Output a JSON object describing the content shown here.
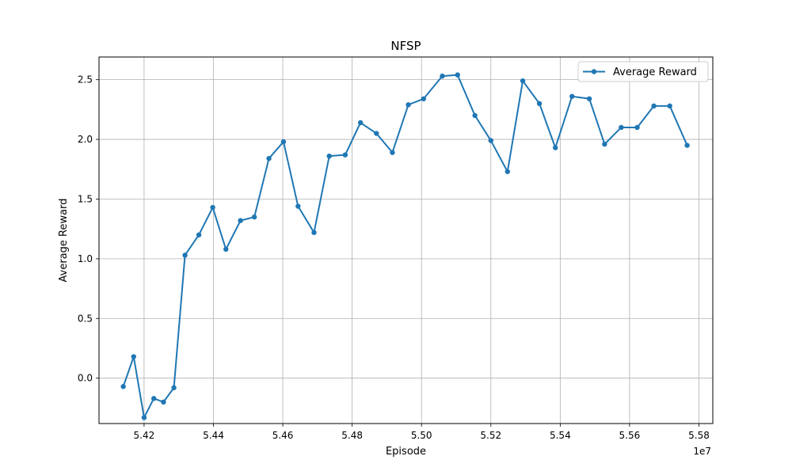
{
  "chart_data": {
    "type": "line",
    "title": "NFSP",
    "xlabel": "Episode",
    "ylabel": "Average Reward",
    "x_offset_label": "1e7",
    "xlim": [
      54.07,
      55.84
    ],
    "ylim": [
      -0.38,
      2.69
    ],
    "x_ticks": [
      54.2,
      54.4,
      54.6,
      54.8,
      55.0,
      55.2,
      55.4,
      55.6,
      55.8
    ],
    "x_tick_labels": [
      "5.42",
      "5.44",
      "5.46",
      "5.48",
      "5.50",
      "5.52",
      "5.54",
      "5.56",
      "5.58"
    ],
    "y_ticks": [
      0.0,
      0.5,
      1.0,
      1.5,
      2.0,
      2.5
    ],
    "y_tick_labels": [
      "0.0",
      "0.5",
      "1.0",
      "1.5",
      "2.0",
      "2.5"
    ],
    "grid": true,
    "legend_position": "top-right",
    "color": "#1f77b4",
    "series": [
      {
        "name": "Average Reward",
        "x": [
          54.14,
          54.17,
          54.2,
          54.228,
          54.256,
          54.286,
          54.318,
          54.358,
          54.398,
          54.436,
          54.478,
          54.518,
          54.56,
          54.602,
          54.644,
          54.69,
          54.734,
          54.78,
          54.824,
          54.87,
          54.916,
          54.962,
          55.006,
          55.06,
          55.104,
          55.154,
          55.2,
          55.248,
          55.292,
          55.34,
          55.386,
          55.434,
          55.484,
          55.528,
          55.576,
          55.622,
          55.67,
          55.716,
          55.766
        ],
        "y": [
          -0.07,
          0.18,
          -0.33,
          -0.17,
          -0.2,
          -0.08,
          1.03,
          1.2,
          1.43,
          1.08,
          1.32,
          1.35,
          1.84,
          1.98,
          1.44,
          1.22,
          1.86,
          1.87,
          2.14,
          2.05,
          1.89,
          2.29,
          2.34,
          2.53,
          2.54,
          2.2,
          1.99,
          1.73,
          2.49,
          2.3,
          1.93,
          2.36,
          2.34,
          1.96,
          2.1,
          2.1,
          2.28,
          2.28,
          1.95
        ]
      }
    ]
  }
}
